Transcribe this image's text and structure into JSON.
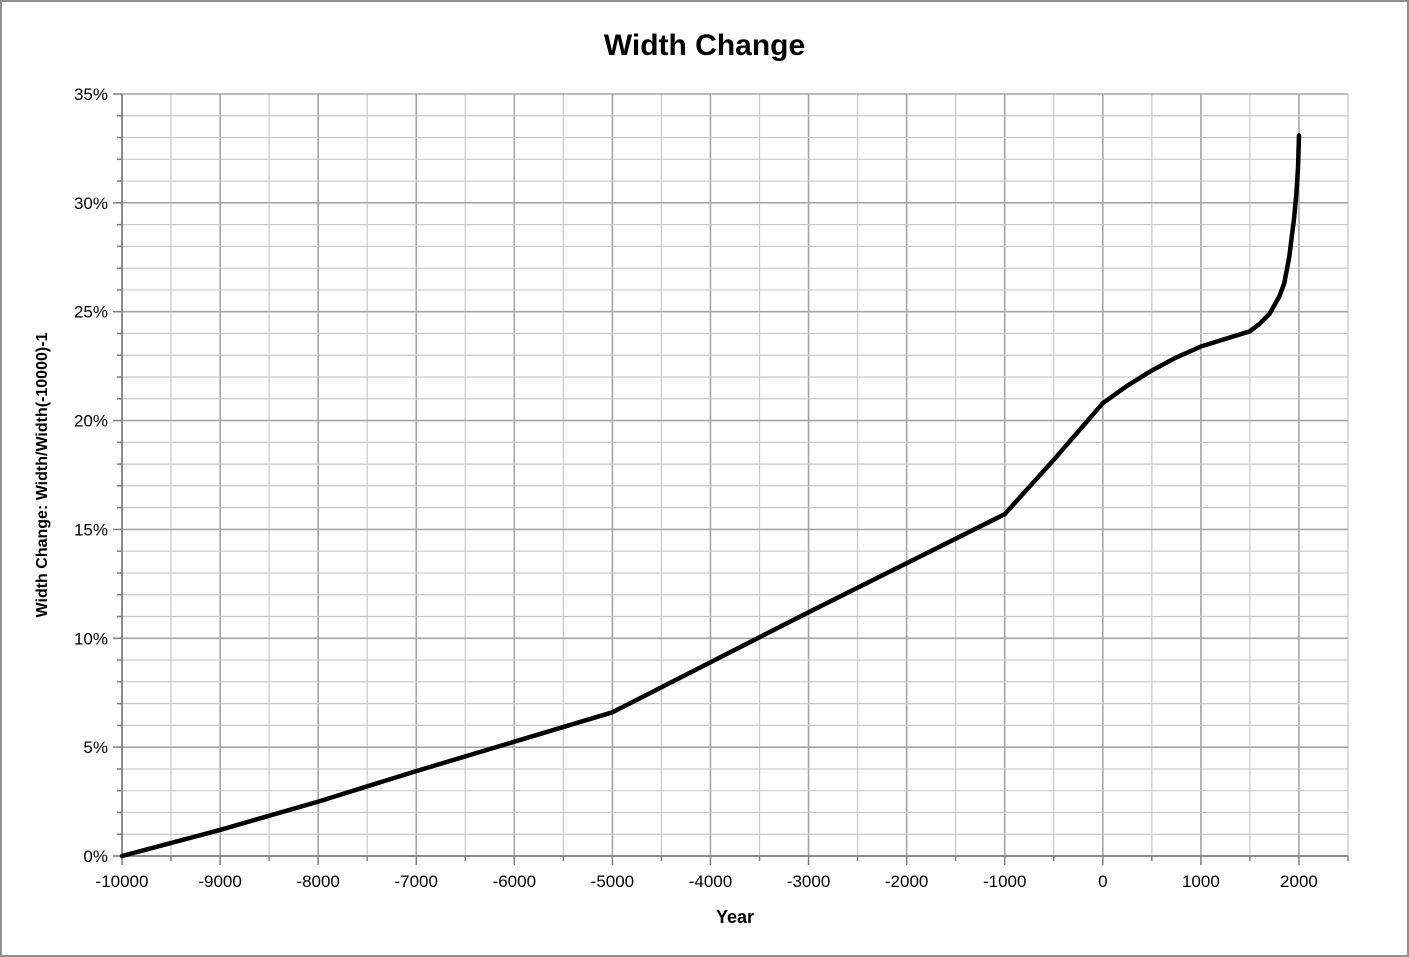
{
  "window": {
    "background": "#ffffff",
    "border_color": "#8f8f8f"
  },
  "chart_data": {
    "type": "line",
    "title": "Width Change",
    "xlabel": "Year",
    "ylabel": "Width Change: Width/Width(-10000)-1",
    "xlim": [
      -10000,
      2500
    ],
    "ylim": [
      0,
      35
    ],
    "x_major_step": 1000,
    "x_minor_step": 500,
    "y_major_step": 5,
    "y_minor_step": 1,
    "grid": {
      "major_color": "#a6a6a6",
      "minor_color": "#c9c9c9",
      "axis_color": "#7f7f7f"
    },
    "legend": "none",
    "x_ticks": [
      {
        "value": -10000,
        "label": "-10000"
      },
      {
        "value": -9000,
        "label": "-9000"
      },
      {
        "value": -8000,
        "label": "-8000"
      },
      {
        "value": -7000,
        "label": "-7000"
      },
      {
        "value": -6000,
        "label": "-6000"
      },
      {
        "value": -5000,
        "label": "-5000"
      },
      {
        "value": -4000,
        "label": "-4000"
      },
      {
        "value": -3000,
        "label": "-3000"
      },
      {
        "value": -2000,
        "label": "-2000"
      },
      {
        "value": -1000,
        "label": "-1000"
      },
      {
        "value": 0,
        "label": "0"
      },
      {
        "value": 1000,
        "label": "1000"
      },
      {
        "value": 2000,
        "label": "2000"
      }
    ],
    "y_ticks": [
      {
        "value": 0,
        "label": "0%"
      },
      {
        "value": 5,
        "label": "5%"
      },
      {
        "value": 10,
        "label": "10%"
      },
      {
        "value": 15,
        "label": "15%"
      },
      {
        "value": 20,
        "label": "20%"
      },
      {
        "value": 25,
        "label": "25%"
      },
      {
        "value": 30,
        "label": "30%"
      },
      {
        "value": 35,
        "label": "35%"
      }
    ],
    "series": [
      {
        "name": "Width Change",
        "color": "#000000",
        "stroke_width": 4.5,
        "points": [
          [
            -10000,
            0.0
          ],
          [
            -9000,
            1.2
          ],
          [
            -8000,
            2.5
          ],
          [
            -7000,
            3.9
          ],
          [
            -6000,
            5.25
          ],
          [
            -5000,
            6.6
          ],
          [
            -4000,
            8.9
          ],
          [
            -3000,
            11.2
          ],
          [
            -2000,
            13.45
          ],
          [
            -1000,
            15.7
          ],
          [
            -500,
            18.2
          ],
          [
            0,
            20.8
          ],
          [
            250,
            21.6
          ],
          [
            500,
            22.3
          ],
          [
            750,
            22.9
          ],
          [
            1000,
            23.4
          ],
          [
            1250,
            23.75
          ],
          [
            1500,
            24.1
          ],
          [
            1600,
            24.45
          ],
          [
            1700,
            24.9
          ],
          [
            1800,
            25.7
          ],
          [
            1850,
            26.3
          ],
          [
            1900,
            27.5
          ],
          [
            1950,
            29.3
          ],
          [
            1975,
            30.5
          ],
          [
            1990,
            31.6
          ],
          [
            2000,
            33.1
          ]
        ]
      }
    ]
  }
}
